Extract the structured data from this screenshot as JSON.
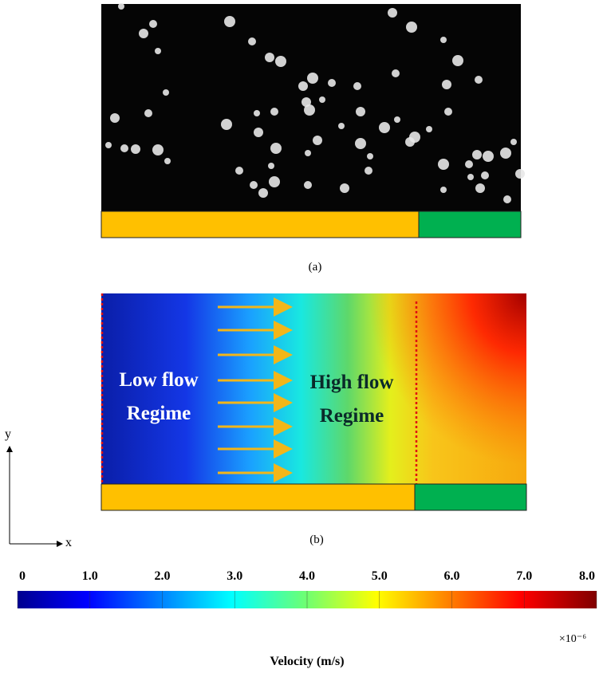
{
  "panel_a": {
    "caption": "(a)"
  },
  "panel_b": {
    "caption": "(b)",
    "left_label": [
      "Low flow",
      "Regime"
    ],
    "right_label": [
      "High flow",
      "Regime"
    ],
    "axis_y": "y",
    "axis_x": "x"
  },
  "colorbar": {
    "lim": [
      0,
      8
    ],
    "ticks": [
      0,
      {
        "value": 1,
        "label": "1.0"
      },
      {
        "value": 2,
        "label": "2.0"
      },
      {
        "value": 3,
        "label": "3.0"
      },
      {
        "value": 4,
        "label": "4.0"
      },
      {
        "value": 5,
        "label": "5.0"
      },
      {
        "value": 6,
        "label": "6.0"
      },
      {
        "value": 7,
        "label": "7.0"
      },
      {
        "value": 8,
        "label": "8.0"
      }
    ],
    "multiplier": "×10⁻⁶",
    "title": "Velocity (m/s)"
  }
}
